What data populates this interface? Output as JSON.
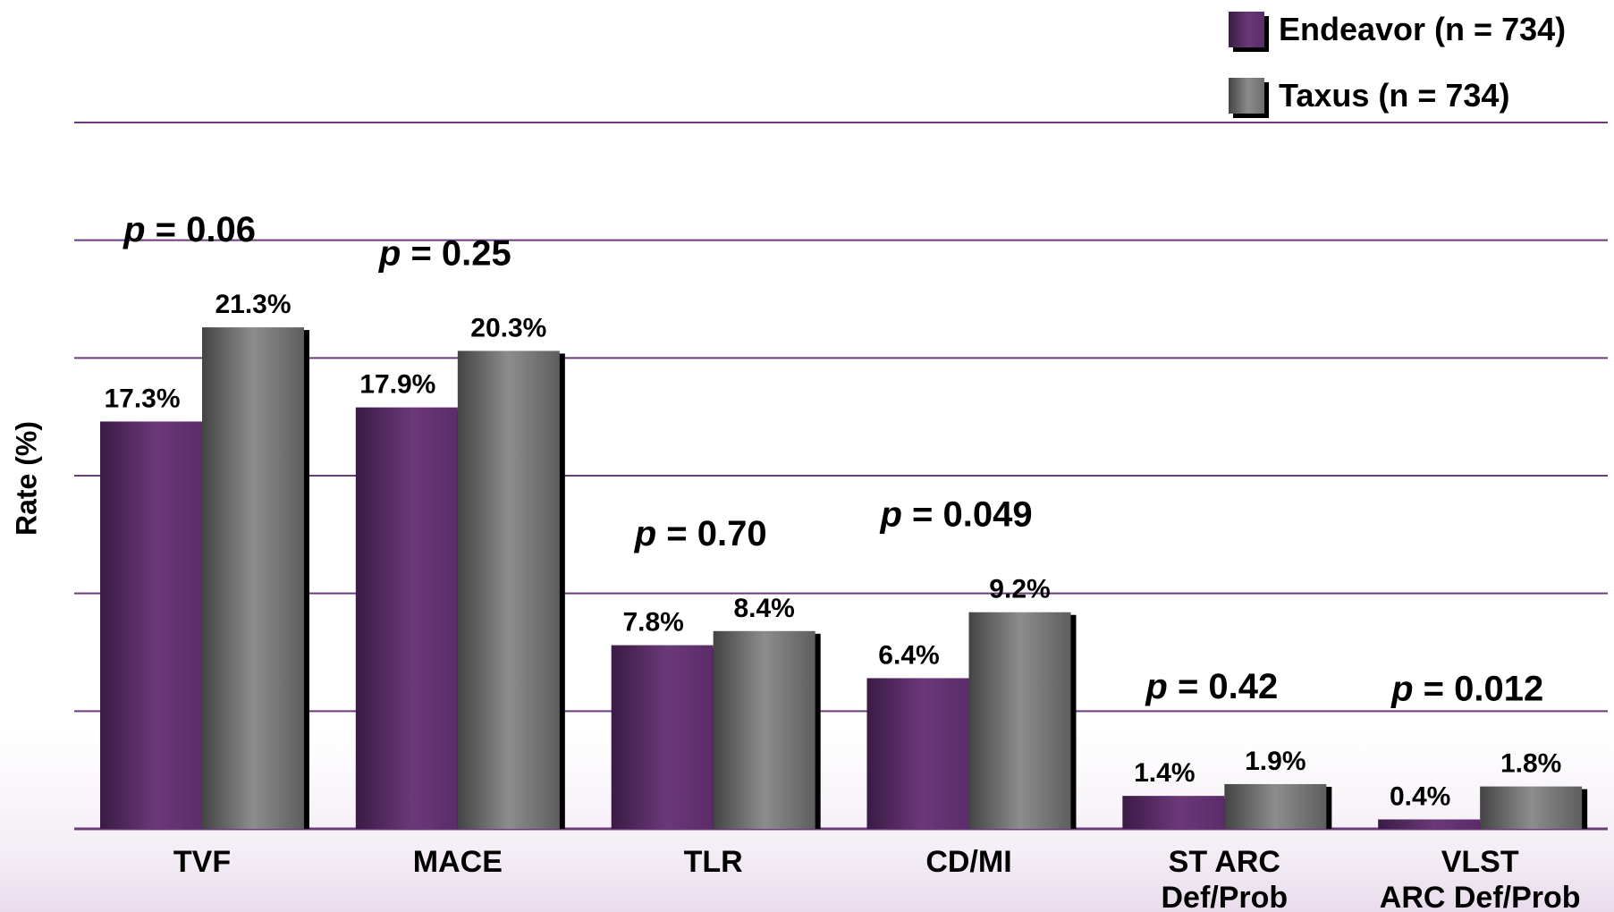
{
  "chart_data": {
    "type": "bar",
    "ylabel": "Rate (%)",
    "ylim": [
      0,
      30
    ],
    "grid": true,
    "legend_position": "top-right",
    "categories": [
      [
        "TVF"
      ],
      [
        "MACE"
      ],
      [
        "TLR"
      ],
      [
        "CD/MI"
      ],
      [
        "ST ARC",
        "Def/Prob"
      ],
      [
        "VLST",
        "ARC Def/Prob"
      ]
    ],
    "series": [
      {
        "name": "Endeavor (n = 734)",
        "values": [
          17.3,
          17.9,
          7.8,
          6.4,
          1.4,
          0.4
        ],
        "labels": [
          "17.3%",
          "17.9%",
          "7.8%",
          "6.4%",
          "1.4%",
          "0.4%"
        ]
      },
      {
        "name": "Taxus (n = 734)",
        "values": [
          21.3,
          20.3,
          8.4,
          9.2,
          1.9,
          1.8
        ],
        "labels": [
          "21.3%",
          "20.3%",
          "8.4%",
          "9.2%",
          "1.9%",
          "1.8%"
        ]
      }
    ],
    "p_values": [
      {
        "p": "p",
        "rest": " = 0.06"
      },
      {
        "p": "p",
        "rest": " = 0.25"
      },
      {
        "p": "p",
        "rest": " = 0.70"
      },
      {
        "p": "p",
        "rest": " = 0.049"
      },
      {
        "p": "p",
        "rest": " = 0.42"
      },
      {
        "p": "p",
        "rest": " = 0.012"
      }
    ]
  },
  "colors": {
    "endeavor": "#5e2f6b",
    "taxus": "#7a7a7a",
    "gridline": "#6a3a7a",
    "text": "#000000"
  }
}
